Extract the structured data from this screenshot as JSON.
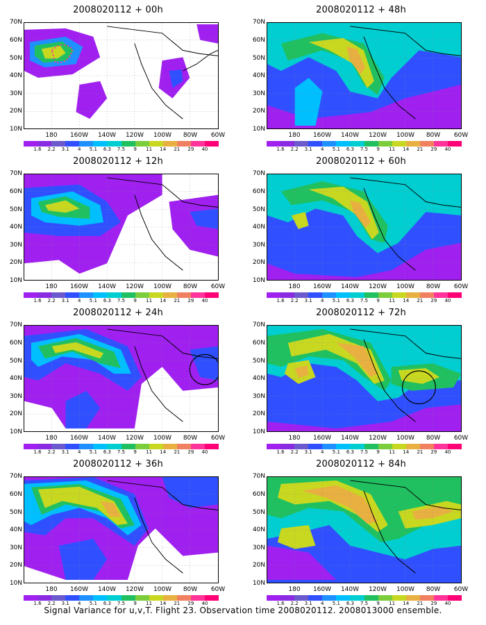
{
  "panels": [
    {
      "title": "2008020112 + 00h"
    },
    {
      "title": "2008020112 + 48h"
    },
    {
      "title": "2008020112 + 12h"
    },
    {
      "title": "2008020112 + 60h"
    },
    {
      "title": "2008020112 + 24h"
    },
    {
      "title": "2008020112 + 72h"
    },
    {
      "title": "2008020112 + 36h"
    },
    {
      "title": "2008020112 + 84h"
    }
  ],
  "lat_labels": [
    "70N",
    "60N",
    "50N",
    "40N",
    "30N",
    "20N",
    "10N"
  ],
  "lon_labels": [
    "180",
    "160W",
    "140W",
    "120W",
    "100W",
    "80W",
    "60W"
  ],
  "colorbar": {
    "labels": [
      "1.6",
      "2.2",
      "3.1",
      "4",
      "5.1",
      "6.3",
      "7.5",
      "9",
      "11",
      "14",
      "21",
      "29",
      "40"
    ],
    "colors": [
      "#a020f0",
      "#8a2be2",
      "#6a5acd",
      "#3050ff",
      "#1e90ff",
      "#00bfff",
      "#00ced1",
      "#20c060",
      "#7ccd3c",
      "#c8d820",
      "#e8b040",
      "#f08060",
      "#ff3399",
      "#ff0077"
    ]
  },
  "footer": "Signal Variance for u,v,T. Flight 23. Observation time 2008020112. 2008013000 ensemble."
}
